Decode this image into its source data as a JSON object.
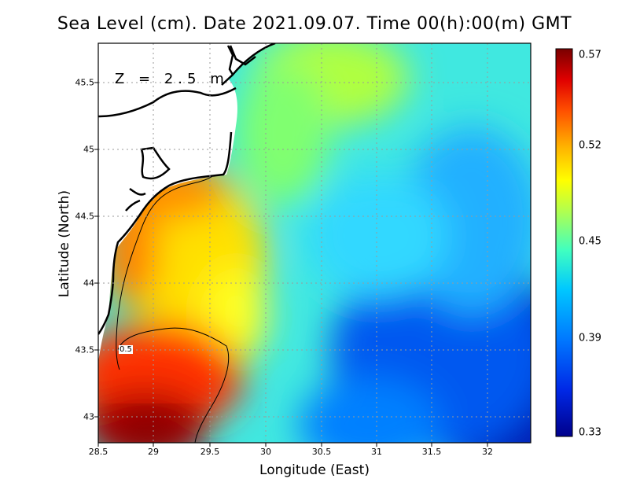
{
  "title": "Sea Level (cm). Date 2021.09.07. Time 00(h):00(m) GMT",
  "annotation": "Z = 2.5 m",
  "contour_label": "0.5",
  "x_axis": {
    "label": "Longitude (East)",
    "ticks": [
      "28.5",
      "29",
      "29.5",
      "30",
      "30.5",
      "31",
      "31.5",
      "32"
    ],
    "range": [
      28.5,
      32.4
    ]
  },
  "y_axis": {
    "label": "Latitude (North)",
    "ticks": [
      "43",
      "43.5",
      "44",
      "44.5",
      "45",
      "45.5"
    ],
    "range": [
      42.8,
      45.8
    ]
  },
  "colorbar": {
    "ticks": [
      "0.57",
      "0.52",
      "0.45",
      "0.39",
      "0.33"
    ],
    "range": [
      0.33,
      0.57
    ],
    "colors": [
      "#00008b",
      "#0050ff",
      "#00c8ff",
      "#40ffc0",
      "#c0ff40",
      "#ffff00",
      "#ffb000",
      "#ff5000",
      "#e00000",
      "#7a0000"
    ]
  }
}
